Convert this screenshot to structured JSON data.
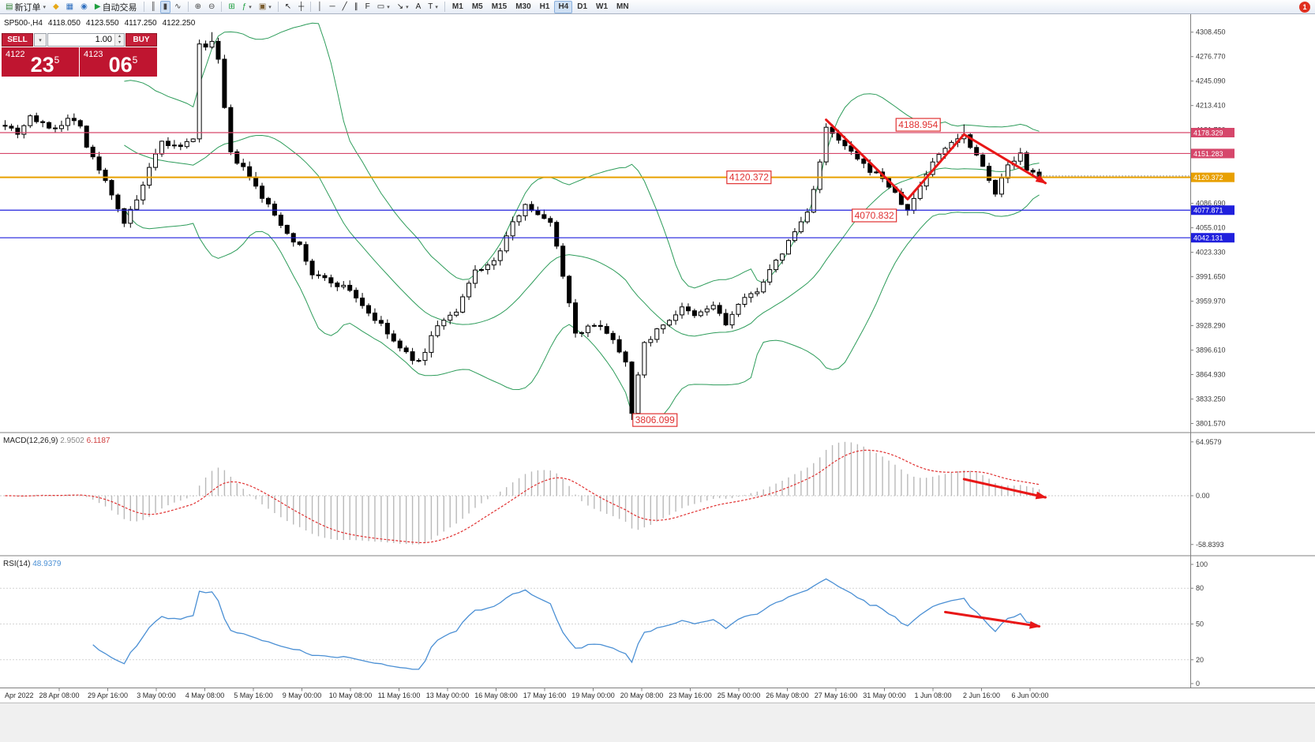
{
  "window": {
    "notification_badge": "1"
  },
  "toolbar": {
    "groups": [
      {
        "items": [
          {
            "name": "new-order-button",
            "icon": "chart-plus-icon",
            "glyph": "▤",
            "color": "#2e7d32",
            "label": "新订单",
            "caret": true
          },
          {
            "name": "mql-wizard-button",
            "icon": "wizard-icon",
            "glyph": "◆",
            "color": "#e6a817"
          },
          {
            "name": "profiles-button",
            "icon": "charts-icon",
            "glyph": "▦",
            "color": "#2f6fbf"
          },
          {
            "name": "data-window-button",
            "icon": "data-window-icon",
            "glyph": "◉",
            "color": "#2f6fbf"
          },
          {
            "name": "autotrading-button",
            "icon": "play-icon",
            "glyph": "▶",
            "color": "#1e9e3e",
            "label": "自动交易"
          }
        ]
      },
      {
        "items": [
          {
            "name": "bar-chart-button",
            "icon": "ohlc-bars-icon",
            "glyph": "║",
            "color": "#444"
          },
          {
            "name": "candlestick-chart-button",
            "icon": "candlestick-icon",
            "glyph": "▮",
            "color": "#444",
            "active": true
          },
          {
            "name": "line-chart-button",
            "icon": "line-chart-icon",
            "glyph": "∿",
            "color": "#444"
          }
        ]
      },
      {
        "items": [
          {
            "name": "zoom-in-button",
            "icon": "zoom-in-icon",
            "glyph": "⊕",
            "color": "#444"
          },
          {
            "name": "zoom-out-button",
            "icon": "zoom-out-icon",
            "glyph": "⊖",
            "color": "#444"
          }
        ]
      },
      {
        "items": [
          {
            "name": "tile-windows-button",
            "icon": "tile-windows-icon",
            "glyph": "⊞",
            "color": "#1e9e3e"
          },
          {
            "name": "indicators-button",
            "icon": "indicators-icon",
            "glyph": "ƒ",
            "color": "#1e9e3e",
            "caret": true
          },
          {
            "name": "templates-button",
            "icon": "templates-icon",
            "glyph": "▣",
            "color": "#7a5c2e",
            "caret": true
          }
        ]
      },
      {
        "items": [
          {
            "name": "cursor-button",
            "icon": "cursor-icon",
            "glyph": "↖",
            "color": "#222"
          },
          {
            "name": "crosshair-button",
            "icon": "crosshair-icon",
            "glyph": "┼",
            "color": "#222"
          }
        ]
      },
      {
        "items": [
          {
            "name": "vertical-line-button",
            "icon": "vertical-line-icon",
            "glyph": "│",
            "color": "#222"
          },
          {
            "name": "horizontal-line-button",
            "icon": "horizontal-line-icon",
            "glyph": "─",
            "color": "#222"
          },
          {
            "name": "trendline-button",
            "icon": "trendline-icon",
            "glyph": "╱",
            "color": "#222"
          },
          {
            "name": "channel-button",
            "icon": "channel-icon",
            "glyph": "∥",
            "color": "#222"
          },
          {
            "name": "fibonacci-button",
            "icon": "fibonacci-icon",
            "glyph": "F",
            "color": "#222"
          },
          {
            "name": "shapes-button",
            "icon": "shapes-icon",
            "glyph": "▭",
            "color": "#222",
            "caret": true
          },
          {
            "name": "arrows-button",
            "icon": "arrow-objects-icon",
            "glyph": "↘",
            "color": "#222",
            "caret": true
          },
          {
            "name": "text-button",
            "icon": "text-icon",
            "glyph": "A",
            "color": "#222"
          },
          {
            "name": "text-label-button",
            "icon": "text-label-icon",
            "glyph": "T",
            "color": "#222",
            "caret": true
          }
        ]
      }
    ],
    "timeframes": {
      "items": [
        "M1",
        "M5",
        "M15",
        "M30",
        "H1",
        "H4",
        "D1",
        "W1",
        "MN"
      ],
      "active": "H4"
    }
  },
  "trade_panel": {
    "sell_label": "SELL",
    "buy_label": "BUY",
    "volume": "1.00",
    "sell_price_prefix": "4122",
    "sell_price_big": "23",
    "sell_price_sup": "5",
    "buy_price_prefix": "4123",
    "buy_price_big": "06",
    "buy_price_sup": "5"
  },
  "chart_header": {
    "symbol": "SP500-,H4",
    "open": "4118.050",
    "high": "4123.550",
    "low": "4117.250",
    "close": "4122.250"
  },
  "chart_data": {
    "type": "candlestick",
    "symbol": "SP500-",
    "timeframe": "H4",
    "price_panel": {
      "ylim": [
        3790.8,
        4331.7
      ],
      "last_price": 4122.25,
      "axis_ticks": [
        "4308.450",
        "4276.770",
        "4245.090",
        "4213.410",
        "4181.730",
        "4150.050",
        "4118.370",
        "4086.690",
        "4055.010",
        "4023.330",
        "3991.650",
        "3959.970",
        "3928.290",
        "3896.610",
        "3864.930",
        "3833.250",
        "3801.570"
      ],
      "levels": [
        {
          "price": 4178.329,
          "label": "4178.329",
          "color": "#d6476b",
          "width": 1.2
        },
        {
          "price": 4151.283,
          "label": "4151.283",
          "color": "#d6476b",
          "width": 1.2
        },
        {
          "price": 4120.372,
          "label": "4120.372",
          "color": "#e8a000",
          "width": 2
        },
        {
          "price": 4077.871,
          "label": "4077.871",
          "color": "#2020dd",
          "width": 1.2
        },
        {
          "price": 4042.131,
          "label": "4042.131",
          "color": "#2020dd",
          "width": 1.2
        }
      ],
      "annotations": [
        {
          "text": "4188.954",
          "index": 146,
          "price": 4188.5
        },
        {
          "text": "4120.372",
          "index": 119,
          "price": 4120.4
        },
        {
          "text": "4070.832",
          "index": 139,
          "price": 4071.0
        },
        {
          "text": "3806.099",
          "index": 104,
          "price": 3806.0
        }
      ],
      "trend_arrows": [
        [
          [
            131,
            4195
          ],
          [
            144,
            4092
          ],
          [
            153,
            4176
          ],
          [
            166,
            4113
          ]
        ]
      ],
      "bollinger": {
        "period": 20,
        "deviation": 2
      },
      "candles": {
        "count": 166,
        "seed": 7,
        "close_waypoints": [
          [
            0,
            4190
          ],
          [
            2,
            4178
          ],
          [
            4,
            4200
          ],
          [
            6,
            4188
          ],
          [
            8,
            4185
          ],
          [
            10,
            4196
          ],
          [
            12,
            4190
          ],
          [
            13,
            4160
          ],
          [
            15,
            4130
          ],
          [
            17,
            4100
          ],
          [
            19,
            4062
          ],
          [
            21,
            4090
          ],
          [
            23,
            4130
          ],
          [
            25,
            4165
          ],
          [
            28,
            4158
          ],
          [
            30,
            4172
          ],
          [
            31,
            4290
          ],
          [
            33,
            4295
          ],
          [
            34,
            4270
          ],
          [
            36,
            4150
          ],
          [
            38,
            4132
          ],
          [
            41,
            4095
          ],
          [
            44,
            4060
          ],
          [
            47,
            4030
          ],
          [
            49,
            3995
          ],
          [
            52,
            3985
          ],
          [
            55,
            3975
          ],
          [
            58,
            3945
          ],
          [
            60,
            3928
          ],
          [
            63,
            3898
          ],
          [
            66,
            3880
          ],
          [
            69,
            3930
          ],
          [
            72,
            3945
          ],
          [
            75,
            4000
          ],
          [
            78,
            4010
          ],
          [
            81,
            4060
          ],
          [
            83,
            4088
          ],
          [
            85,
            4070
          ],
          [
            87,
            4065
          ],
          [
            89,
            3995
          ],
          [
            91,
            3920
          ],
          [
            95,
            3930
          ],
          [
            97,
            3910
          ],
          [
            99,
            3883
          ],
          [
            100,
            3818
          ],
          [
            102,
            3905
          ],
          [
            105,
            3930
          ],
          [
            108,
            3950
          ],
          [
            110,
            3940
          ],
          [
            113,
            3955
          ],
          [
            115,
            3930
          ],
          [
            117,
            3955
          ],
          [
            120,
            3975
          ],
          [
            123,
            4010
          ],
          [
            126,
            4050
          ],
          [
            128,
            4075
          ],
          [
            130,
            4140
          ],
          [
            131,
            4183
          ],
          [
            134,
            4160
          ],
          [
            137,
            4135
          ],
          [
            140,
            4120
          ],
          [
            144,
            4076
          ],
          [
            146,
            4110
          ],
          [
            148,
            4140
          ],
          [
            151,
            4168
          ],
          [
            153,
            4175
          ],
          [
            155,
            4150
          ],
          [
            157,
            4120
          ],
          [
            158,
            4100
          ],
          [
            160,
            4135
          ],
          [
            162,
            4150
          ],
          [
            163,
            4128
          ],
          [
            165,
            4122.25
          ]
        ],
        "key_extremes": [
          {
            "index": 33,
            "high": 4308.45
          },
          {
            "index": 100,
            "low": 3806.099
          },
          {
            "index": 144,
            "low": 4070.832
          },
          {
            "index": 153,
            "high": 4188.954
          }
        ]
      }
    },
    "macd_panel": {
      "name": "MACD(12,26,9)",
      "value_main": "2.9502",
      "value_signal": "6.1187",
      "axis_ticks": [
        "64.9579",
        "0.00",
        "-58.8393"
      ],
      "arrow": [
        [
          153,
          20
        ],
        [
          166,
          -2
        ]
      ]
    },
    "rsi_panel": {
      "name": "RSI(14)",
      "value": "48.9379",
      "period": 14,
      "axis_ticks": [
        "100",
        "80",
        "50",
        "20",
        "0"
      ],
      "level_lines": [
        80,
        50,
        20
      ],
      "arrow": [
        [
          150,
          60
        ],
        [
          165,
          48
        ]
      ]
    },
    "time_axis": {
      "labels": [
        "Apr 2022",
        "28 Apr 08:00",
        "29 Apr 16:00",
        "3 May 00:00",
        "4 May 08:00",
        "5 May 16:00",
        "9 May 00:00",
        "10 May 08:00",
        "11 May 16:00",
        "13 May 00:00",
        "16 May 08:00",
        "17 May 16:00",
        "19 May 00:00",
        "20 May 08:00",
        "23 May 16:00",
        "25 May 00:00",
        "26 May 08:00",
        "27 May 16:00",
        "31 May 00:00",
        "1 Jun 08:00",
        "2 Jun 16:00",
        "6 Jun 00:00"
      ]
    }
  }
}
